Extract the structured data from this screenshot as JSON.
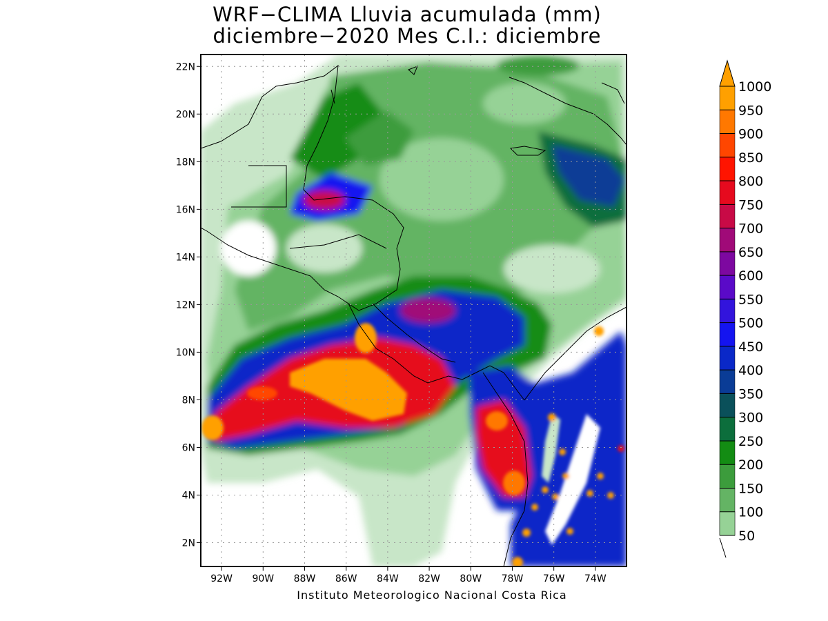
{
  "title": {
    "line1": "WRF−CLIMA Lluvia acumulada (mm)",
    "line2": "diciembre−2020 Mes C.I.: diciembre"
  },
  "credit": "Instituto Meteorologico Nacional Costa Rica",
  "map": {
    "lat_labels": [
      "22N",
      "20N",
      "18N",
      "16N",
      "14N",
      "12N",
      "10N",
      "8N",
      "6N",
      "4N",
      "2N"
    ],
    "lon_labels": [
      "92W",
      "90W",
      "88W",
      "86W",
      "84W",
      "82W",
      "80W",
      "78W",
      "76W",
      "74W"
    ],
    "lat_range": [
      1,
      22.5
    ],
    "lon_range": [
      -93,
      -72.5
    ],
    "grid": true
  },
  "colorbar": {
    "levels": [
      "50",
      "100",
      "150",
      "200",
      "250",
      "300",
      "350",
      "400",
      "450",
      "500",
      "550",
      "600",
      "650",
      "700",
      "750",
      "800",
      "850",
      "900",
      "950",
      "1000"
    ],
    "colors": [
      "#c8e6c8",
      "#96d296",
      "#64b464",
      "#3c9c3c",
      "#138c13",
      "#0c6e3c",
      "#0a505a",
      "#0a3c96",
      "#0a28c8",
      "#1414f0",
      "#3214dc",
      "#5a0ac8",
      "#7d08a0",
      "#a00a78",
      "#c80a46",
      "#e60a1e",
      "#ff1400",
      "#ff4600",
      "#ff7800",
      "#ffa000"
    ]
  }
}
